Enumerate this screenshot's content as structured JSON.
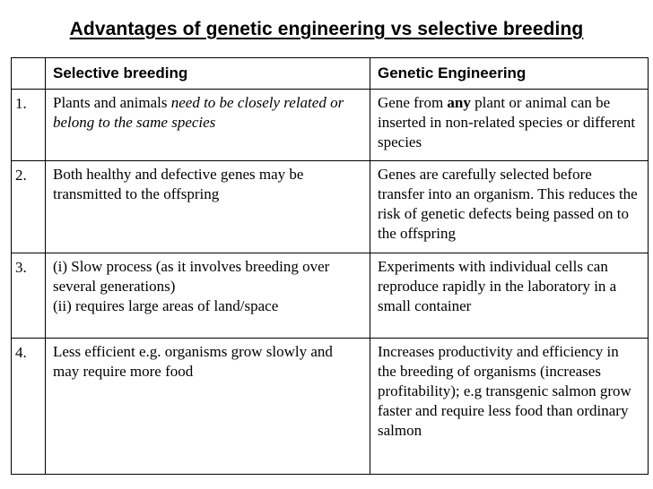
{
  "title": "Advantages of genetic engineering vs selective breeding",
  "headers": {
    "number": "",
    "selective": "Selective breeding",
    "genetic": "Genetic Engineering"
  },
  "rows": [
    {
      "number": "1.",
      "selective": {
        "text1": "Plants and animals ",
        "italic": "need to be closely related or belong to the same species"
      },
      "genetic": {
        "text1": "Gene from ",
        "bold": "any",
        "text2": " plant or animal can be inserted in non-related species or different species"
      }
    },
    {
      "number": "2.",
      "selective": {
        "text": "Both healthy and defective genes may be transmitted to the offspring"
      },
      "genetic": {
        "text": "Genes are carefully selected before transfer into an organism. This reduces the risk of genetic defects being passed on to the offspring"
      }
    },
    {
      "number": "3.",
      "selective": {
        "line1": "(i) Slow process (as it involves breeding over several generations)",
        "line2": "(ii) requires large areas of land/space"
      },
      "genetic": {
        "text": "Experiments with individual cells can reproduce rapidly in the laboratory in a small container"
      }
    },
    {
      "number": "4.",
      "selective": {
        "text": "Less efficient e.g. organisms grow slowly and may require more food"
      },
      "genetic": {
        "text": "Increases productivity and efficiency in the breeding of organisms (increases profitability); e.g transgenic salmon grow faster and require less food than ordinary salmon"
      }
    }
  ]
}
